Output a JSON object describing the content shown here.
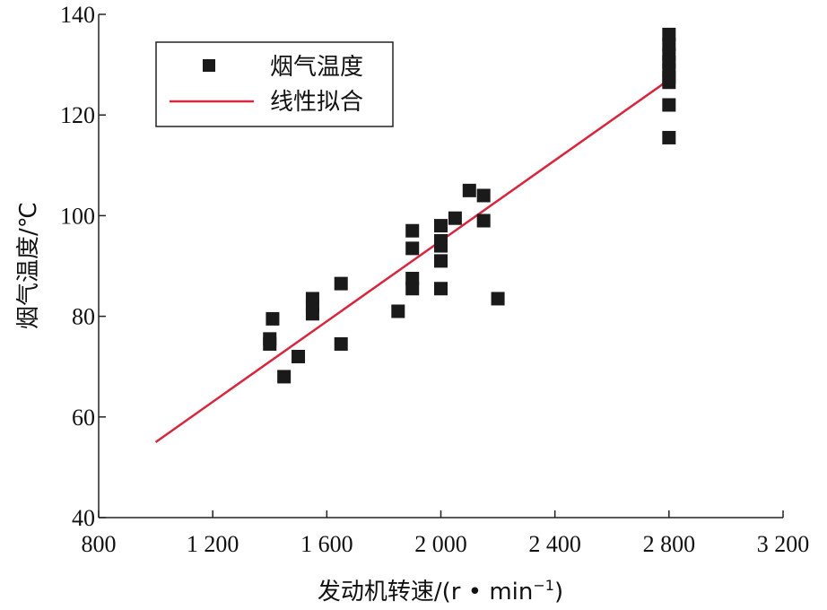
{
  "chart_data": {
    "type": "scatter",
    "xlabel": "发动机转速/(r • min",
    "xlabel_sup": "−1",
    "xlabel_end": ")",
    "ylabel": "烟气温度/℃",
    "xlim": [
      800,
      3200
    ],
    "ylim": [
      40,
      140
    ],
    "xticks": [
      800,
      1200,
      1600,
      2000,
      2400,
      2800,
      3200
    ],
    "xtick_labels": [
      "800",
      "1 200",
      "1 600",
      "2 000",
      "2 400",
      "2 800",
      "3 200"
    ],
    "yticks": [
      40,
      60,
      80,
      100,
      120,
      140
    ],
    "ytick_labels": [
      "40",
      "60",
      "80",
      "100",
      "120",
      "140"
    ],
    "legend_position": "top-left",
    "series": [
      {
        "name": "烟气温度",
        "kind": "scatter",
        "marker": "square",
        "color": "#1a1a1a",
        "points": [
          [
            1400,
            75.5
          ],
          [
            1400,
            74.5
          ],
          [
            1410,
            79.5
          ],
          [
            1450,
            68
          ],
          [
            1500,
            72
          ],
          [
            1550,
            83.5
          ],
          [
            1550,
            82
          ],
          [
            1550,
            80.5
          ],
          [
            1650,
            86.5
          ],
          [
            1650,
            74.5
          ],
          [
            1850,
            81
          ],
          [
            1900,
            97
          ],
          [
            1900,
            93.5
          ],
          [
            1900,
            87.5
          ],
          [
            1900,
            85.5
          ],
          [
            2000,
            98
          ],
          [
            2000,
            95
          ],
          [
            2000,
            94
          ],
          [
            2000,
            91
          ],
          [
            2000,
            85.5
          ],
          [
            2050,
            99.5
          ],
          [
            2100,
            105
          ],
          [
            2150,
            104
          ],
          [
            2150,
            99
          ],
          [
            2200,
            83.5
          ],
          [
            2800,
            136
          ],
          [
            2800,
            134
          ],
          [
            2800,
            132
          ],
          [
            2800,
            130.5
          ],
          [
            2800,
            129
          ],
          [
            2800,
            127.5
          ],
          [
            2800,
            126.5
          ],
          [
            2800,
            122
          ],
          [
            2800,
            115.5
          ]
        ]
      },
      {
        "name": "线性拟合",
        "kind": "line",
        "color": "#d7263d",
        "points": [
          [
            1000,
            55
          ],
          [
            2800,
            127
          ]
        ]
      }
    ]
  }
}
